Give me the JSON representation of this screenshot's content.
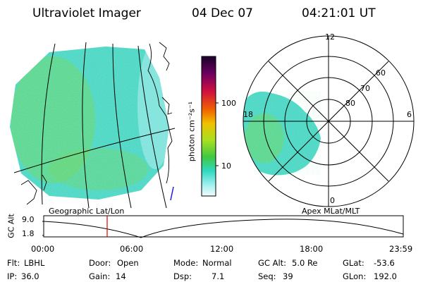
{
  "header": {
    "title": "Ultraviolet Imager",
    "date": "04 Dec 07",
    "time": "04:21:01 UT"
  },
  "colorbar": {
    "unit_label": "photon cm⁻²s⁻¹",
    "ticks": [
      "100",
      "10"
    ]
  },
  "geo_map": {
    "label": "Geographic Lat/Lon"
  },
  "polar_plot": {
    "label": "Apex MLat/MLT",
    "lat_labels": [
      "60",
      "70",
      "80"
    ],
    "mlt_labels": [
      "12",
      "18",
      "6",
      "0"
    ]
  },
  "orbit": {
    "axis_label": "GC Alt",
    "y_ticks": [
      "9.0",
      "1.8"
    ],
    "x_ticks": [
      "00:00",
      "06:00",
      "12:00",
      "18:00",
      "23:59"
    ]
  },
  "status": {
    "flt_label": "Flt:",
    "flt_value": "LBHL",
    "door_label": "Door:",
    "door_value": "Open",
    "mode_label": "Mode:",
    "mode_value": "Normal",
    "gcalt_label": "GC Alt:",
    "gcalt_value": "5.0 Re",
    "glat_label": "GLat:",
    "glat_value": "-53.6",
    "ip_label": "IP:",
    "ip_value": "36.0",
    "gain_label": "Gain:",
    "gain_value": "14",
    "dsp_label": "Dsp:",
    "dsp_value": "7.1",
    "seq_label": "Seq:",
    "seq_value": "39",
    "glon_label": "GLon:",
    "glon_value": "192.0"
  },
  "colors": {
    "aurora_teal": "#4fd8c8",
    "aurora_green": "#7ed957",
    "marker_red": "#e00000"
  }
}
